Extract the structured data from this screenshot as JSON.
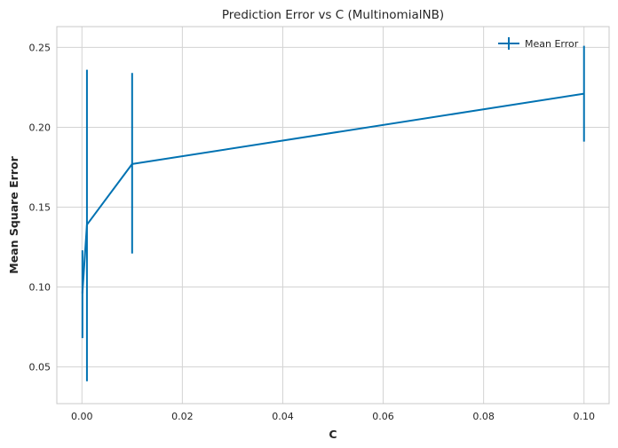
{
  "chart_data": {
    "type": "line",
    "title": "Prediction Error vs C (MultinomialNB)",
    "xlabel": "C",
    "ylabel": "Mean Square Error",
    "xlim": [
      -0.005,
      0.105
    ],
    "ylim": [
      0.027,
      0.263
    ],
    "xticks": [
      0.0,
      0.02,
      0.04,
      0.06,
      0.08,
      0.1
    ],
    "xtick_labels": [
      "0.00",
      "0.02",
      "0.04",
      "0.06",
      "0.08",
      "0.10"
    ],
    "yticks": [
      0.05,
      0.1,
      0.15,
      0.2,
      0.25
    ],
    "ytick_labels": [
      "0.05",
      "0.10",
      "0.15",
      "0.20",
      "0.25"
    ],
    "grid": true,
    "legend_position": "top-right",
    "colors": {
      "series": "#0072b2",
      "grid": "#d3d3d3",
      "frame": "#c8c8c8"
    },
    "series": [
      {
        "name": "Mean Error",
        "x": [
          0.0001,
          0.001,
          0.01,
          0.1
        ],
        "y": [
          0.096,
          0.139,
          0.177,
          0.221
        ],
        "yerr_low": [
          0.068,
          0.041,
          0.121,
          0.191
        ],
        "yerr_high": [
          0.123,
          0.236,
          0.234,
          0.251
        ]
      }
    ]
  }
}
